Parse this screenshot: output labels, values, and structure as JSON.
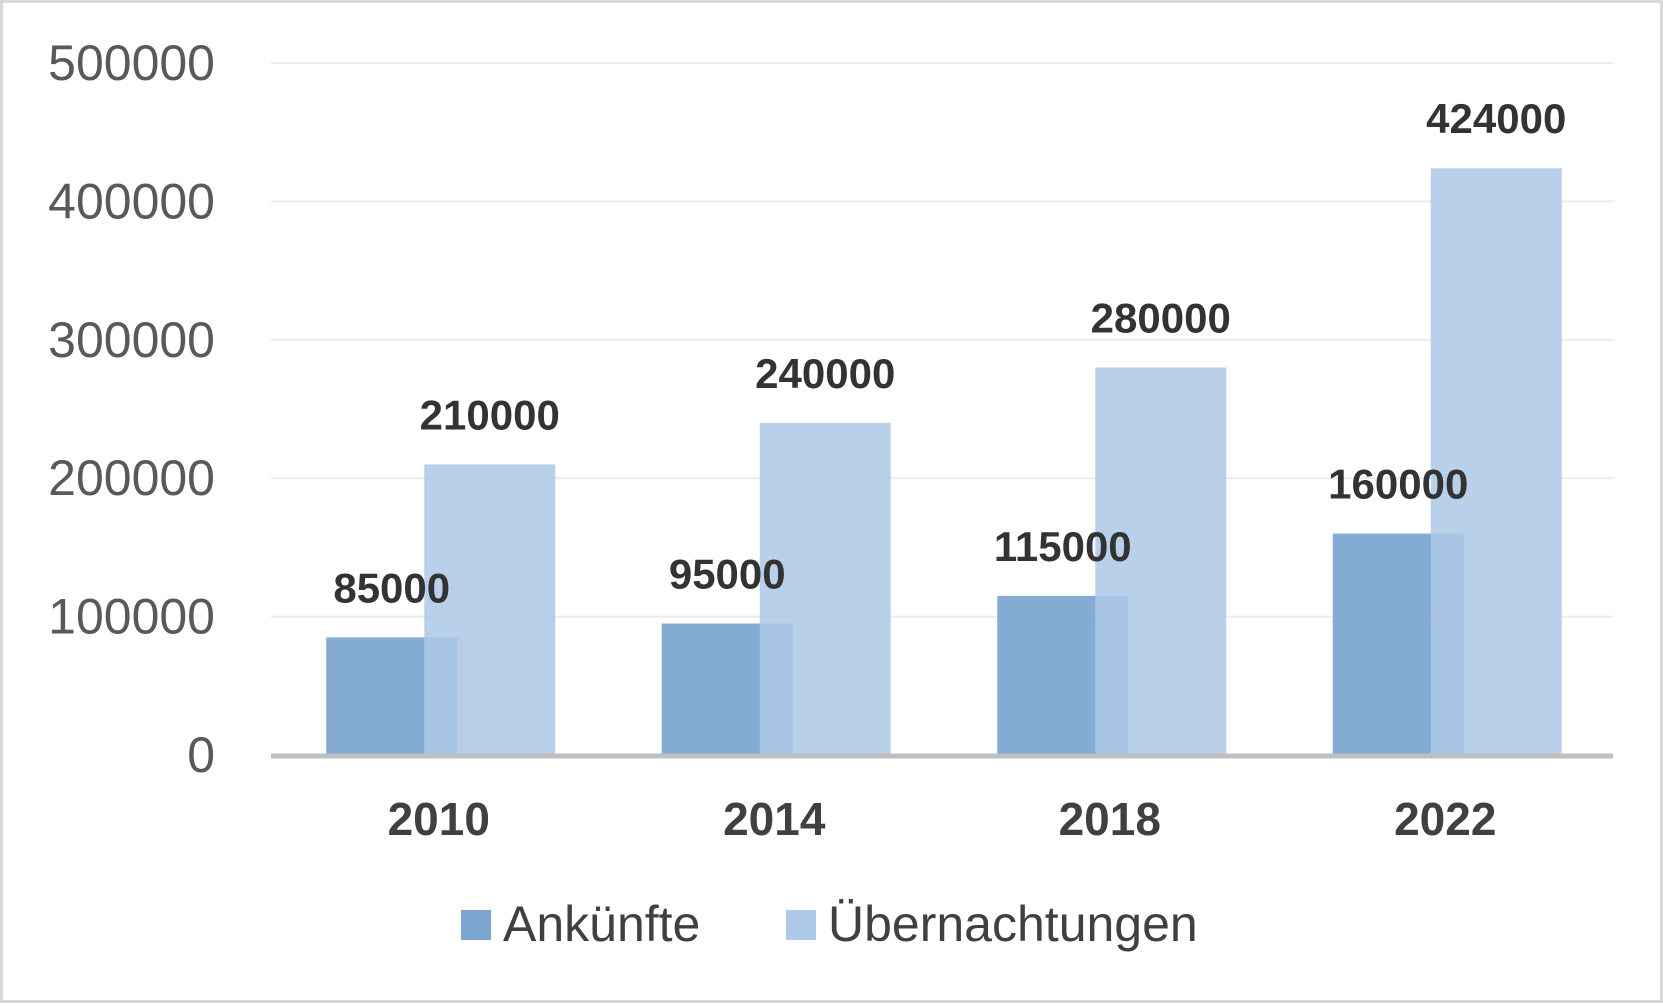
{
  "chart_data": {
    "type": "bar",
    "categories": [
      "2010",
      "2014",
      "2018",
      "2022"
    ],
    "series": [
      {
        "name": "Ankünfte",
        "values": [
          85000,
          95000,
          115000,
          160000
        ],
        "color": "#7da7d0"
      },
      {
        "name": "Übernachtungen",
        "values": [
          210000,
          240000,
          280000,
          424000
        ],
        "color": "#adc8e8"
      }
    ],
    "yticks": [
      "0",
      "100000",
      "200000",
      "300000",
      "400000",
      "500000"
    ],
    "ylim": [
      0,
      500000
    ],
    "grid": true,
    "legend_position": "bottom"
  }
}
